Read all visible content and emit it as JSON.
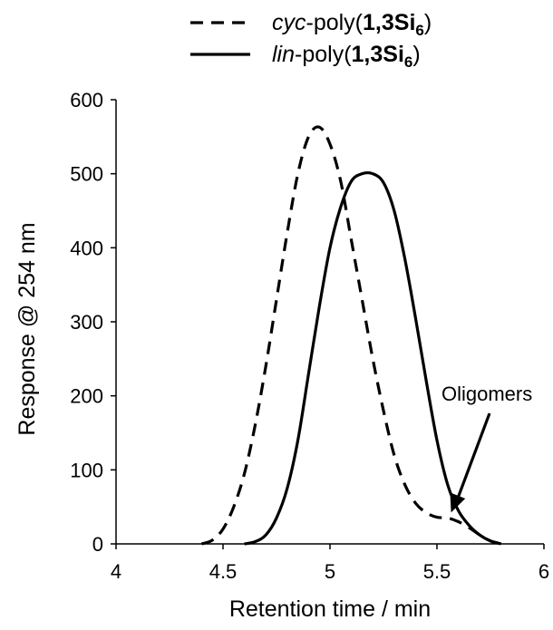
{
  "chart_data": {
    "type": "line",
    "xlabel": "Retention time / min",
    "ylabel": "Response @ 254 nm",
    "xlim": [
      4,
      6
    ],
    "ylim": [
      0,
      600
    ],
    "x_ticks": [
      "4",
      "4.5",
      "5",
      "5.5",
      "6"
    ],
    "y_ticks": [
      "0",
      "100",
      "200",
      "300",
      "400",
      "500",
      "600"
    ],
    "grid": false,
    "legend_position": "top-center",
    "legend": [
      {
        "prefix": "cyc",
        "middle": "-poly(",
        "bold": "1,3Si",
        "sub": "6",
        "suffix": ")",
        "style": "dashed"
      },
      {
        "prefix": "lin",
        "middle": "-poly(",
        "bold": "1,3Si",
        "sub": "6",
        "suffix": ")",
        "style": "solid"
      }
    ],
    "annotation": {
      "text": "Oligomers",
      "x": 5.6,
      "y": 40
    },
    "series": [
      {
        "style": "dashed",
        "x": [
          4.4,
          4.45,
          4.5,
          4.55,
          4.6,
          4.65,
          4.7,
          4.75,
          4.8,
          4.85,
          4.9,
          4.95,
          5.0,
          5.05,
          5.1,
          5.15,
          5.2,
          5.25,
          5.3,
          5.35,
          5.4,
          5.45,
          5.5,
          5.55,
          5.6,
          5.65,
          5.7,
          5.75,
          5.8
        ],
        "y": [
          0,
          5,
          20,
          50,
          95,
          160,
          240,
          330,
          420,
          500,
          550,
          563,
          540,
          490,
          410,
          330,
          250,
          180,
          120,
          80,
          55,
          42,
          36,
          35,
          30,
          22,
          12,
          4,
          0
        ]
      },
      {
        "style": "solid",
        "x": [
          4.6,
          4.65,
          4.7,
          4.75,
          4.8,
          4.85,
          4.9,
          4.95,
          5.0,
          5.05,
          5.1,
          5.15,
          5.2,
          5.25,
          5.3,
          5.35,
          5.4,
          5.45,
          5.5,
          5.55,
          5.6,
          5.65,
          5.7,
          5.75,
          5.8
        ],
        "y": [
          0,
          3,
          12,
          35,
          75,
          140,
          230,
          320,
          400,
          455,
          490,
          500,
          500,
          488,
          450,
          385,
          305,
          220,
          140,
          80,
          45,
          25,
          12,
          4,
          0
        ]
      }
    ]
  }
}
